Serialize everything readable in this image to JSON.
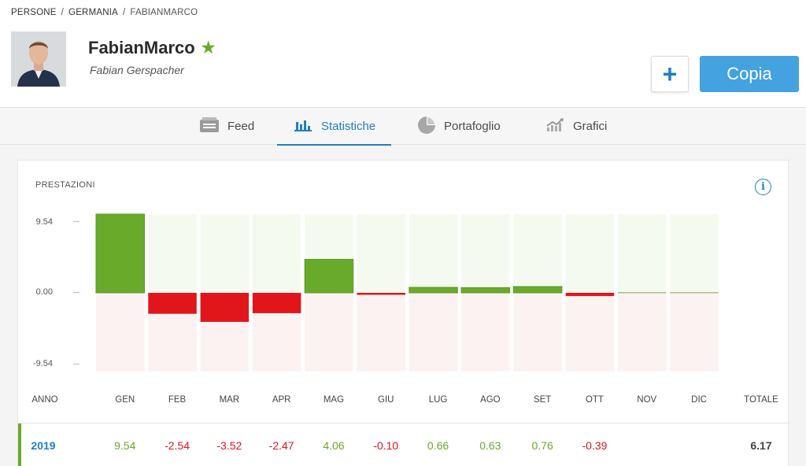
{
  "breadcrumb": {
    "item1": "PERSONE",
    "item2": "GERMANIA",
    "item3": "FABIANMARCO",
    "sep": "/"
  },
  "profile": {
    "username": "FabianMarco",
    "full_name": "Fabian Gerspacher",
    "star_icon": "star-icon"
  },
  "actions": {
    "plus_label": "+",
    "copy_label": "Copia"
  },
  "tabs": [
    {
      "label": "Feed",
      "icon": "feed-icon"
    },
    {
      "label": "Statistiche",
      "icon": "bar-chart-icon"
    },
    {
      "label": "Portafoglio",
      "icon": "pie-chart-icon"
    },
    {
      "label": "Grafici",
      "icon": "trend-chart-icon"
    }
  ],
  "performance": {
    "title": "PRESTAZIONI",
    "info_icon": "i",
    "y_labels": {
      "top": "9.54",
      "mid": "0.00",
      "bottom": "-9.54"
    },
    "headers": {
      "year": "ANNO",
      "total": "TOTALE"
    },
    "months": [
      "GEN",
      "FEB",
      "MAR",
      "APR",
      "MAG",
      "GIU",
      "LUG",
      "AGO",
      "SET",
      "OTT",
      "NOV",
      "DIC"
    ],
    "rows": [
      {
        "year": "2019",
        "values": [
          "9.54",
          "-2.54",
          "-3.52",
          "-2.47",
          "4.06",
          "-0.10",
          "0.66",
          "0.63",
          "0.76",
          "-0.39",
          "",
          ""
        ],
        "total": "6.17"
      }
    ]
  },
  "colors": {
    "positive": "#6aaa2a",
    "negative": "#e0161b",
    "accent": "#1f7fc4",
    "button": "#44a2e0"
  },
  "chart_data": {
    "type": "bar",
    "title": "PRESTAZIONI",
    "categories": [
      "GEN",
      "FEB",
      "MAR",
      "APR",
      "MAG",
      "GIU",
      "LUG",
      "AGO",
      "SET",
      "OTT",
      "NOV",
      "DIC"
    ],
    "values": [
      9.54,
      -2.54,
      -3.52,
      -2.47,
      4.06,
      -0.1,
      0.66,
      0.63,
      0.76,
      -0.39,
      0,
      0
    ],
    "ylim": [
      -9.54,
      9.54
    ],
    "yticks": [
      -9.54,
      0.0,
      9.54
    ],
    "xlabel": "",
    "ylabel": "",
    "grid": false
  }
}
